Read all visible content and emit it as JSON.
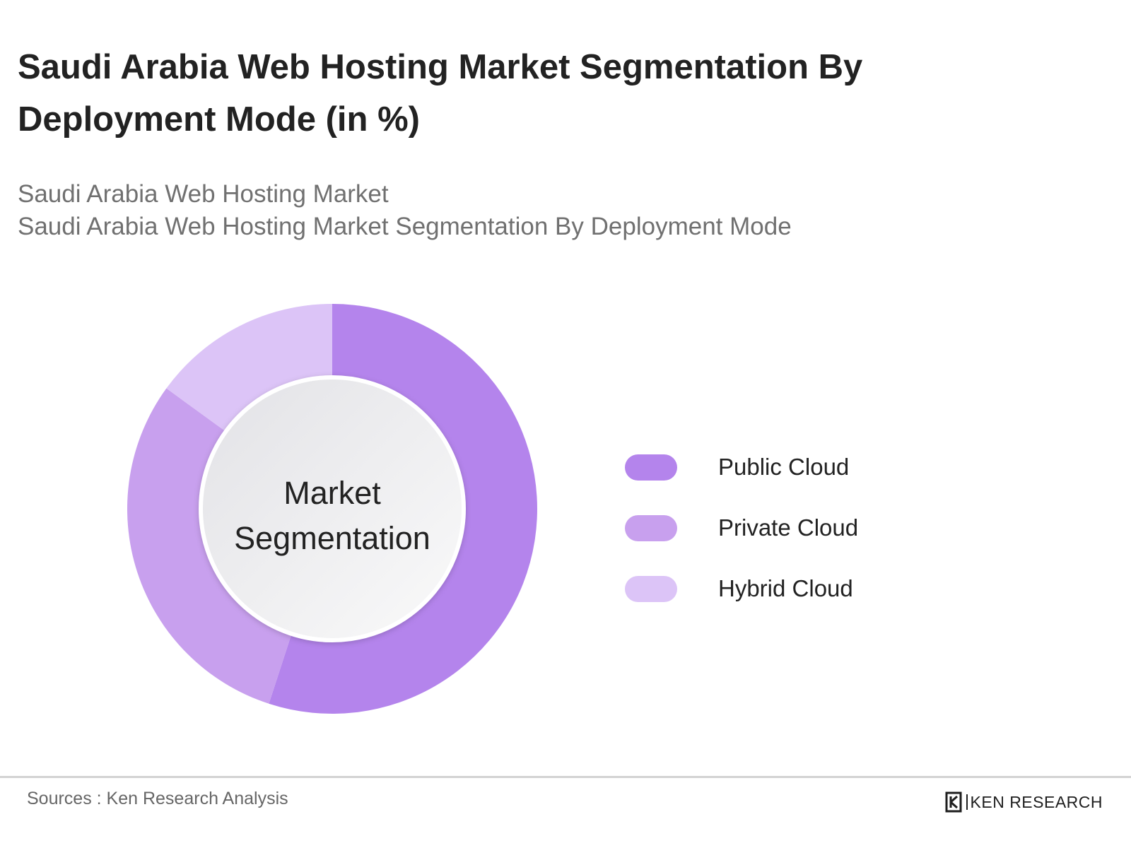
{
  "title": "Saudi Arabia Web Hosting Market Segmentation By Deployment Mode (in %)",
  "subtitle_lines": [
    "Saudi Arabia Web Hosting Market",
    "Saudi Arabia Web Hosting Market Segmentation By Deployment Mode"
  ],
  "center_label": [
    "Market",
    "Segmentation"
  ],
  "chart_data": {
    "type": "pie",
    "variant": "donut",
    "unit": "%",
    "categories": [
      "Public Cloud",
      "Private Cloud",
      "Hybrid Cloud"
    ],
    "values": [
      55,
      30,
      15
    ],
    "colors": [
      "#b484ec",
      "#c8a0ee",
      "#dcc4f7"
    ],
    "legend_position": "right"
  },
  "footer": {
    "source": "Sources : Ken Research Analysis",
    "brand": "KEN RESEARCH"
  }
}
